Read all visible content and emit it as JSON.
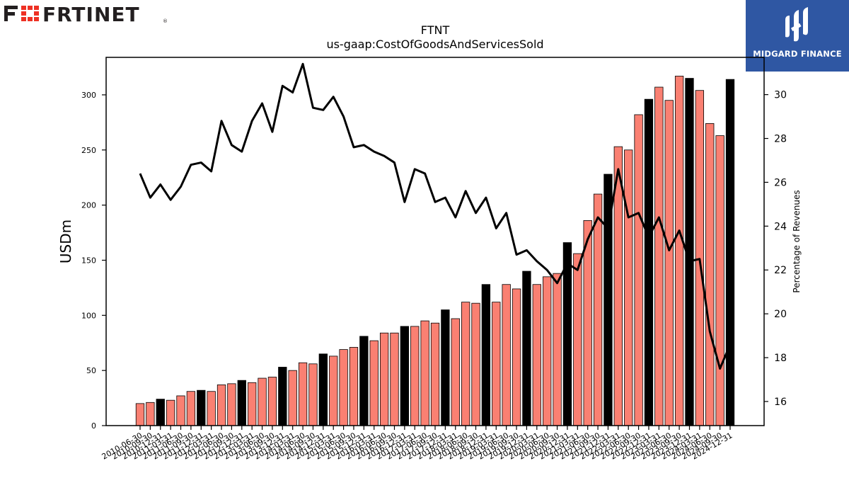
{
  "brand": {
    "logo_text": "FRTINET",
    "logo_name": "fortinet-logo"
  },
  "badge": {
    "text": "MIDGARD FINANCE",
    "icon": "midgard-finance-icon",
    "color": "#2f57a3"
  },
  "chart_data": {
    "type": "bar",
    "title": "FTNT",
    "subtitle": "us-gaap:CostOfGoodsAndServicesSold",
    "ylabel": "USDm",
    "y2label": "Percentage of Revenues",
    "ylim": [
      0,
      334
    ],
    "y2lim": [
      14.9,
      31.7
    ],
    "yticks": [
      0,
      50,
      100,
      150,
      200,
      250,
      300
    ],
    "y2ticks": [
      16,
      18,
      20,
      22,
      24,
      26,
      28,
      30
    ],
    "colors": {
      "quarter": "#fa8072",
      "year_end": "#000000",
      "line": "#000000"
    },
    "categories": [
      "2010-06-30",
      "2010-09-30",
      "2010-12-31",
      "2011-03-31",
      "2011-06-30",
      "2011-09-30",
      "2011-12-31",
      "2012-03-31",
      "2012-06-30",
      "2012-09-30",
      "2012-12-31",
      "2013-03-31",
      "2013-06-30",
      "2013-09-30",
      "2013-12-31",
      "2014-03-31",
      "2014-06-30",
      "2014-09-30",
      "2014-12-31",
      "2015-03-31",
      "2015-06-30",
      "2015-09-30",
      "2015-12-31",
      "2016-03-31",
      "2016-06-30",
      "2016-09-30",
      "2016-12-31",
      "2017-03-31",
      "2017-06-30",
      "2017-09-30",
      "2017-12-31",
      "2018-03-31",
      "2018-06-30",
      "2018-09-30",
      "2018-12-31",
      "2019-03-31",
      "2019-06-30",
      "2019-09-30",
      "2019-12-31",
      "2020-03-31",
      "2020-06-30",
      "2020-09-30",
      "2020-12-31",
      "2021-03-31",
      "2021-06-30",
      "2021-09-30",
      "2021-12-31",
      "2022-03-31",
      "2022-06-30",
      "2022-09-30",
      "2022-12-31",
      "2023-03-31",
      "2023-06-30",
      "2023-09-30",
      "2023-12-31",
      "2024-03-31",
      "2024-06-30",
      "2024-09-30",
      "2024-12-31"
    ],
    "series": [
      {
        "role": "bar",
        "values": [
          20,
          21,
          24,
          23,
          27,
          31,
          32,
          31,
          37,
          38,
          41,
          39,
          43,
          44,
          53,
          50,
          57,
          56,
          65,
          63,
          69,
          71,
          81,
          77,
          84,
          84,
          90,
          90,
          95,
          93,
          105,
          97,
          112,
          111,
          128,
          112,
          128,
          124,
          140,
          128,
          135,
          138,
          166,
          156,
          186,
          210,
          228,
          253,
          250,
          282,
          296,
          307,
          295,
          317,
          315,
          304,
          274,
          263,
          314
        ],
        "year_end": [
          false,
          false,
          true,
          false,
          false,
          false,
          true,
          false,
          false,
          false,
          true,
          false,
          false,
          false,
          true,
          false,
          false,
          false,
          true,
          false,
          false,
          false,
          true,
          false,
          false,
          false,
          true,
          false,
          false,
          false,
          true,
          false,
          false,
          false,
          true,
          false,
          false,
          false,
          true,
          false,
          false,
          false,
          true,
          false,
          false,
          false,
          true,
          false,
          false,
          false,
          true,
          false,
          false,
          false,
          true,
          false,
          false,
          false,
          true
        ]
      },
      {
        "role": "line",
        "axis": "right",
        "values": [
          26.4,
          25.3,
          25.9,
          25.2,
          25.8,
          26.8,
          26.9,
          26.5,
          28.8,
          27.7,
          27.4,
          28.8,
          29.6,
          28.3,
          30.4,
          30.1,
          31.4,
          29.4,
          29.3,
          29.9,
          29.0,
          27.6,
          27.7,
          27.4,
          27.2,
          26.9,
          25.1,
          26.6,
          26.4,
          25.1,
          25.3,
          24.4,
          25.6,
          24.6,
          25.3,
          23.9,
          24.6,
          22.7,
          22.9,
          22.4,
          22.0,
          21.4,
          22.3,
          22.0,
          23.4,
          24.4,
          23.9,
          26.6,
          24.4,
          24.6,
          23.5,
          24.4,
          22.9,
          23.8,
          22.4,
          22.5,
          19.2,
          17.5,
          18.6
        ]
      }
    ]
  }
}
